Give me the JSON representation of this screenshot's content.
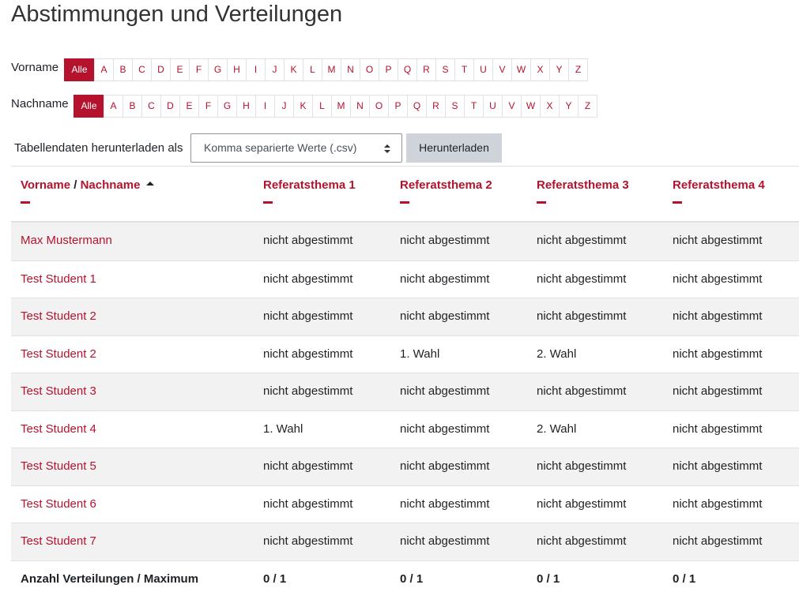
{
  "header": {
    "title": "Abstimmungen und Verteilungen"
  },
  "filters": [
    {
      "label": "Vorname",
      "all": "Alle",
      "letters": [
        "A",
        "B",
        "C",
        "D",
        "E",
        "F",
        "G",
        "H",
        "I",
        "J",
        "K",
        "L",
        "M",
        "N",
        "O",
        "P",
        "Q",
        "R",
        "S",
        "T",
        "U",
        "V",
        "W",
        "X",
        "Y",
        "Z"
      ]
    },
    {
      "label": "Nachname",
      "all": "Alle",
      "letters": [
        "A",
        "B",
        "C",
        "D",
        "E",
        "F",
        "G",
        "H",
        "I",
        "J",
        "K",
        "L",
        "M",
        "N",
        "O",
        "P",
        "Q",
        "R",
        "S",
        "T",
        "U",
        "V",
        "W",
        "X",
        "Y",
        "Z"
      ]
    }
  ],
  "download": {
    "label": "Tabellendaten herunterladen als",
    "select": "Komma separierte Werte (.csv)",
    "button": "Herunterladen"
  },
  "table": {
    "name_header": {
      "first": "Vorname",
      "separator": "/",
      "last": "Nachname"
    },
    "columns": [
      "Referatsthema 1",
      "Referatsthema 2",
      "Referatsthema 3",
      "Referatsthema 4"
    ],
    "rows": [
      {
        "name": "Max Mustermann",
        "cells": [
          "nicht abgestimmt",
          "nicht abgestimmt",
          "nicht abgestimmt",
          "nicht abgestimmt"
        ]
      },
      {
        "name": "Test Student 1",
        "cells": [
          "nicht abgestimmt",
          "nicht abgestimmt",
          "nicht abgestimmt",
          "nicht abgestimmt"
        ]
      },
      {
        "name": "Test Student 2",
        "cells": [
          "nicht abgestimmt",
          "nicht abgestimmt",
          "nicht abgestimmt",
          "nicht abgestimmt"
        ]
      },
      {
        "name": "Test Student 2",
        "cells": [
          "nicht abgestimmt",
          "1. Wahl",
          "2. Wahl",
          "nicht abgestimmt"
        ]
      },
      {
        "name": "Test Student 3",
        "cells": [
          "nicht abgestimmt",
          "nicht abgestimmt",
          "nicht abgestimmt",
          "nicht abgestimmt"
        ]
      },
      {
        "name": "Test Student 4",
        "cells": [
          "1. Wahl",
          "nicht abgestimmt",
          "2. Wahl",
          "nicht abgestimmt"
        ]
      },
      {
        "name": "Test Student 5",
        "cells": [
          "nicht abgestimmt",
          "nicht abgestimmt",
          "nicht abgestimmt",
          "nicht abgestimmt"
        ]
      },
      {
        "name": "Test Student 6",
        "cells": [
          "nicht abgestimmt",
          "nicht abgestimmt",
          "nicht abgestimmt",
          "nicht abgestimmt"
        ]
      },
      {
        "name": "Test Student 7",
        "cells": [
          "nicht abgestimmt",
          "nicht abgestimmt",
          "nicht abgestimmt",
          "nicht abgestimmt"
        ]
      }
    ],
    "footer": {
      "label": "Anzahl Verteilungen / Maximum",
      "values": [
        "0 / 1",
        "0 / 1",
        "0 / 1",
        "0 / 1"
      ]
    }
  }
}
